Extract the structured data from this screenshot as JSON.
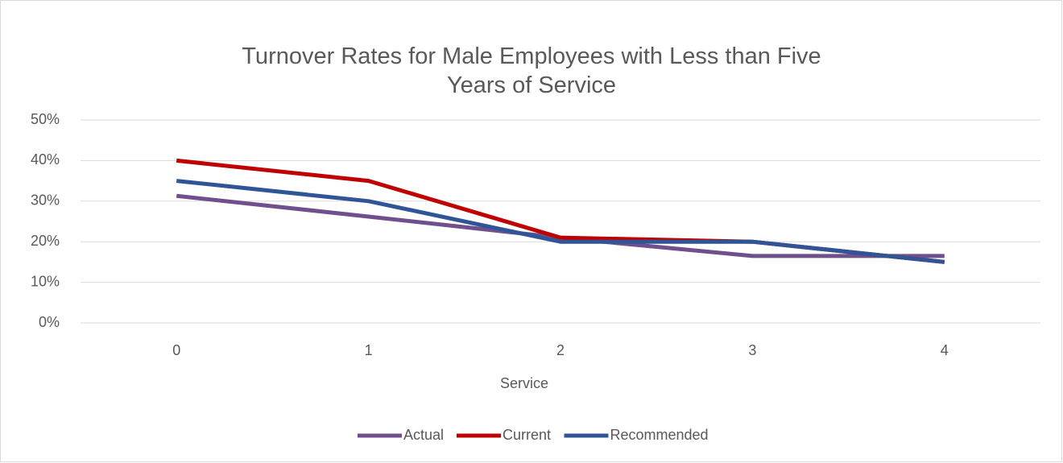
{
  "chart_data": {
    "type": "line",
    "title": "Turnover Rates for Male Employees with Less than Five Years of Service",
    "x_label": "Service",
    "categories": [
      "0",
      "1",
      "2",
      "3",
      "4"
    ],
    "series": [
      {
        "name": "Actual",
        "color": "#70508c",
        "values": [
          31.3,
          26.2,
          21,
          16.5,
          16.5
        ]
      },
      {
        "name": "Current",
        "color": "#c00000",
        "values": [
          40,
          35,
          21,
          20,
          15
        ]
      },
      {
        "name": "Recommended",
        "color": "#2f5597",
        "values": [
          35,
          30,
          20,
          20,
          15
        ]
      }
    ],
    "ylim": [
      0,
      50
    ],
    "yticks": [
      {
        "value": 0,
        "label": "0%"
      },
      {
        "value": 10,
        "label": "10%"
      },
      {
        "value": 20,
        "label": "20%"
      },
      {
        "value": 30,
        "label": "30%"
      },
      {
        "value": 40,
        "label": "40%"
      },
      {
        "value": 50,
        "label": "50%"
      }
    ],
    "grid": true,
    "legend": "bottom"
  }
}
